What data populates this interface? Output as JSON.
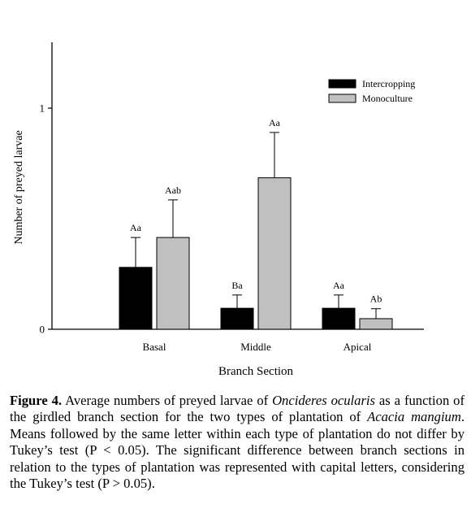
{
  "chart_data": {
    "type": "bar",
    "xlabel": "Branch Section",
    "ylabel": "Number of preyed larvae",
    "ylim": [
      0,
      1.3
    ],
    "yticks": [
      "0",
      "1"
    ],
    "categories": [
      "Basal",
      "Middle",
      "Apical"
    ],
    "series": [
      {
        "name": "Intercropping",
        "color": "#000000",
        "values": [
          0.28,
          0.095,
          0.095
        ],
        "errors": [
          0.135,
          0.06,
          0.06
        ],
        "labels": [
          "Aa",
          "Ba",
          "Aa"
        ]
      },
      {
        "name": "Monoculture",
        "color": "#c0c0c0",
        "values": [
          0.415,
          0.685,
          0.048
        ],
        "errors": [
          0.17,
          0.205,
          0.045
        ],
        "labels": [
          "Aab",
          "Aa",
          "Ab"
        ]
      }
    ],
    "legend": "top-right",
    "grid": false
  },
  "caption": {
    "figure_label": "Figure 4.",
    "text_1": " Average numbers of preyed larvae of ",
    "species": "Oncideres ocularis",
    "text_2": " as a function of the girdled branch section for the two types of plantation of ",
    "host": "Acacia mangium",
    "text_3": ". Means followed by the same letter within each type of plantation do not differ by Tukey’s test (P < 0.05). The significant difference between branch sections in relation to the types of plantation was represented with capital letters, considering the Tukey’s test (P > 0.05)."
  }
}
